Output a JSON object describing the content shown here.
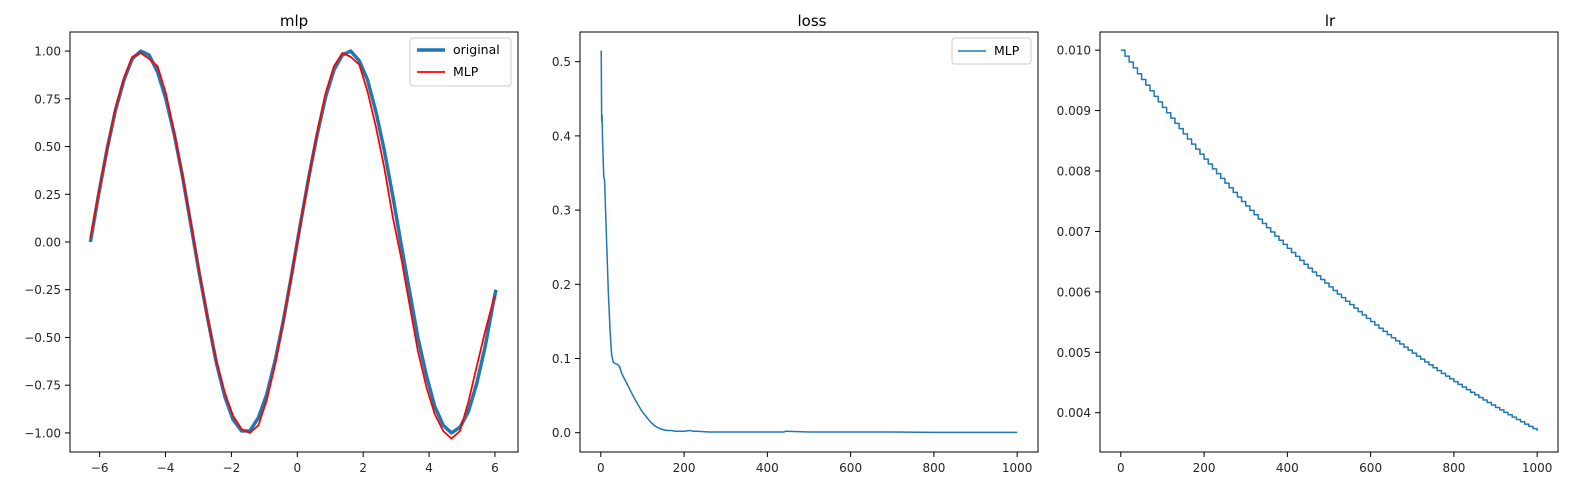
{
  "chart_data": [
    {
      "type": "line",
      "title": "mlp",
      "xlabel": "",
      "ylabel": "",
      "xlim": [
        -6.9,
        6.7
      ],
      "ylim": [
        -1.1,
        1.1
      ],
      "xticks": [
        -6,
        -4,
        -2,
        0,
        2,
        4,
        6
      ],
      "xtick_labels": [
        "−6",
        "−4",
        "−2",
        "0",
        "2",
        "4",
        "6"
      ],
      "yticks": [
        -1.0,
        -0.75,
        -0.5,
        -0.25,
        0.0,
        0.25,
        0.5,
        0.75,
        1.0
      ],
      "ytick_labels": [
        "−1.00",
        "−0.75",
        "−0.50",
        "−0.25",
        "0.00",
        "0.25",
        "0.50",
        "0.75",
        "1.00"
      ],
      "legend": "top-right",
      "grid": false,
      "series": [
        {
          "name": "original",
          "color": "#1f77b4",
          "line_width": 3.5,
          "x": [
            -6.28,
            -6.03,
            -5.77,
            -5.52,
            -5.26,
            -5.01,
            -4.75,
            -4.5,
            -4.24,
            -3.99,
            -3.73,
            -3.48,
            -3.22,
            -2.97,
            -2.71,
            -2.46,
            -2.2,
            -1.95,
            -1.69,
            -1.44,
            -1.18,
            -0.93,
            -0.67,
            -0.42,
            -0.16,
            0.09,
            0.35,
            0.6,
            0.86,
            1.11,
            1.37,
            1.62,
            1.88,
            2.13,
            2.39,
            2.64,
            2.9,
            3.15,
            3.41,
            3.66,
            3.92,
            4.17,
            4.43,
            4.68,
            4.94,
            5.19,
            5.45,
            5.7,
            5.96,
            6.03
          ],
          "y": [
            0.0,
            0.25,
            0.49,
            0.69,
            0.85,
            0.96,
            1.0,
            0.98,
            0.89,
            0.75,
            0.56,
            0.34,
            0.08,
            -0.17,
            -0.41,
            -0.63,
            -0.81,
            -0.93,
            -0.99,
            -0.99,
            -0.92,
            -0.8,
            -0.62,
            -0.41,
            -0.16,
            0.09,
            0.34,
            0.56,
            0.76,
            0.9,
            0.98,
            1.0,
            0.95,
            0.85,
            0.68,
            0.48,
            0.24,
            -0.01,
            -0.26,
            -0.5,
            -0.7,
            -0.86,
            -0.96,
            -1.0,
            -0.97,
            -0.89,
            -0.74,
            -0.55,
            -0.31,
            -0.25
          ]
        },
        {
          "name": "MLP",
          "color": "#ff0000",
          "line_width": 1.8,
          "x": [
            -6.28,
            -6.03,
            -5.77,
            -5.52,
            -5.26,
            -5.01,
            -4.75,
            -4.5,
            -4.24,
            -3.99,
            -3.73,
            -3.48,
            -3.22,
            -2.97,
            -2.71,
            -2.46,
            -2.2,
            -1.95,
            -1.69,
            -1.44,
            -1.18,
            -0.93,
            -0.67,
            -0.42,
            -0.16,
            0.09,
            0.35,
            0.6,
            0.86,
            1.11,
            1.37,
            1.62,
            1.88,
            2.13,
            2.39,
            2.64,
            2.9,
            3.15,
            3.41,
            3.66,
            3.92,
            4.17,
            4.43,
            4.68,
            4.94,
            5.19,
            5.45,
            5.7,
            5.96,
            6.03
          ],
          "y": [
            0.02,
            0.26,
            0.49,
            0.7,
            0.86,
            0.97,
            0.99,
            0.96,
            0.92,
            0.78,
            0.57,
            0.34,
            0.09,
            -0.16,
            -0.41,
            -0.62,
            -0.79,
            -0.91,
            -0.98,
            -1.0,
            -0.96,
            -0.83,
            -0.64,
            -0.41,
            -0.16,
            0.09,
            0.34,
            0.57,
            0.78,
            0.92,
            0.99,
            0.97,
            0.93,
            0.79,
            0.6,
            0.39,
            0.13,
            -0.08,
            -0.33,
            -0.57,
            -0.76,
            -0.9,
            -0.99,
            -1.03,
            -0.99,
            -0.84,
            -0.65,
            -0.47,
            -0.3,
            -0.28
          ]
        }
      ]
    },
    {
      "type": "line",
      "title": "loss",
      "xlabel": "",
      "ylabel": "",
      "xlim": [
        -50,
        1050
      ],
      "ylim": [
        -0.026,
        0.54
      ],
      "xticks": [
        0,
        200,
        400,
        600,
        800,
        1000
      ],
      "xtick_labels": [
        "0",
        "200",
        "400",
        "600",
        "800",
        "1000"
      ],
      "yticks": [
        0.0,
        0.1,
        0.2,
        0.3,
        0.4,
        0.5
      ],
      "ytick_labels": [
        "0.0",
        "0.1",
        "0.2",
        "0.3",
        "0.4",
        "0.5"
      ],
      "legend": "top-right",
      "grid": false,
      "series": [
        {
          "name": "MLP",
          "color": "#1f77b4",
          "line_width": 1.5,
          "x": [
            1,
            2,
            3,
            4,
            5,
            7,
            9,
            12,
            15,
            18,
            22,
            26,
            30,
            35,
            40,
            45,
            50,
            60,
            70,
            80,
            90,
            100,
            110,
            120,
            130,
            140,
            150,
            160,
            170,
            180,
            200,
            215,
            220,
            230,
            260,
            290,
            300,
            350,
            400,
            440,
            445,
            500,
            600,
            690,
            700,
            800,
            900,
            1000
          ],
          "y": [
            0.515,
            0.42,
            0.428,
            0.4,
            0.38,
            0.345,
            0.34,
            0.29,
            0.24,
            0.19,
            0.14,
            0.105,
            0.095,
            0.093,
            0.092,
            0.089,
            0.08,
            0.069,
            0.058,
            0.047,
            0.037,
            0.028,
            0.021,
            0.014,
            0.009,
            0.006,
            0.004,
            0.003,
            0.003,
            0.002,
            0.002,
            0.003,
            0.002,
            0.002,
            0.001,
            0.001,
            0.001,
            0.001,
            0.001,
            0.001,
            0.002,
            0.001,
            0.001,
            0.001,
            0.001,
            0.0005,
            0.0005,
            0.0005
          ]
        }
      ]
    },
    {
      "type": "line",
      "title": "lr",
      "xlabel": "",
      "ylabel": "",
      "xlim": [
        -50,
        1050
      ],
      "ylim": [
        0.00335,
        0.0103
      ],
      "xticks": [
        0,
        200,
        400,
        600,
        800,
        1000
      ],
      "xtick_labels": [
        "0",
        "200",
        "400",
        "600",
        "800",
        "1000"
      ],
      "yticks": [
        0.004,
        0.005,
        0.006,
        0.007,
        0.008,
        0.009,
        0.01
      ],
      "ytick_labels": [
        "0.004",
        "0.005",
        "0.006",
        "0.007",
        "0.008",
        "0.009",
        "0.010"
      ],
      "legend": "none",
      "grid": false,
      "step": 10,
      "start_value": 0.01,
      "end_value": 0.0037,
      "series": [
        {
          "name": "",
          "color": "#1f77b4",
          "line_width": 1.5,
          "x": [
            0,
            1000
          ],
          "y": [
            0.01,
            0.0037
          ]
        }
      ]
    }
  ]
}
